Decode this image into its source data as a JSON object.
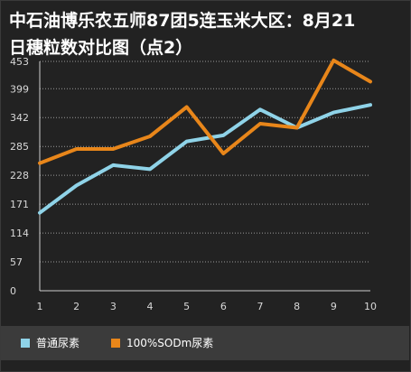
{
  "chart_data": {
    "type": "line",
    "title_lines": [
      "中石油博乐农五师87团5连玉米大区：8月21",
      "日穗粒数对比图（点2）"
    ],
    "xlabel": "",
    "ylabel": "",
    "x": [
      "1",
      "2",
      "3",
      "4",
      "5",
      "6",
      "7",
      "8",
      "9",
      "10"
    ],
    "y_ticks": [
      0,
      57,
      114,
      171,
      228,
      285,
      342,
      399,
      453
    ],
    "ylim": [
      0,
      453
    ],
    "grid": "horizontal dotted",
    "legend_position": "bottom-left",
    "series": [
      {
        "name": "普通尿素",
        "color": "#8fd3e8",
        "values": [
          154,
          208,
          248,
          240,
          295,
          307,
          358,
          322,
          352,
          367
        ]
      },
      {
        "name": "100%SODm尿素",
        "color": "#e8861a",
        "values": [
          252,
          280,
          280,
          305,
          363,
          271,
          330,
          322,
          455,
          413
        ]
      }
    ]
  }
}
